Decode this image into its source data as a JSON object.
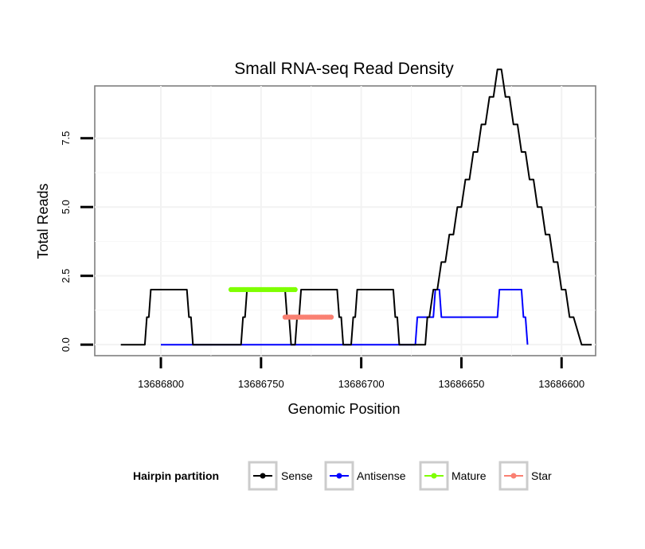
{
  "chart_data": {
    "type": "line",
    "title": "Small RNA-seq Read Density",
    "xlabel": "Genomic Position",
    "ylabel": "Total Reads",
    "x_reversed": true,
    "xlim": [
      13686833,
      13686583
    ],
    "ylim": [
      -0.4,
      9.4
    ],
    "x_ticks": [
      13686800,
      13686750,
      13686700,
      13686650,
      13686600
    ],
    "x_tick_labels": [
      "13686800",
      "13686750",
      "13686700",
      "13686650",
      "13686600"
    ],
    "y_ticks": [
      0,
      2.5,
      5,
      7.5
    ],
    "y_tick_labels": [
      "0.0",
      "2.5",
      "5.0",
      "7.5"
    ],
    "grid": true,
    "legend": {
      "title": "Hairpin partition",
      "position": "bottom",
      "entries": [
        "Sense",
        "Antisense",
        "Mature",
        "Star"
      ]
    },
    "series": [
      {
        "name": "Sense",
        "color": "#000000",
        "marker": "line",
        "x": [
          13686820,
          13686808,
          13686807,
          13686806,
          13686805,
          13686787,
          13686786,
          13686785,
          13686784,
          13686760,
          13686759,
          13686758,
          13686757,
          13686738,
          13686737,
          13686736,
          13686735,
          13686733,
          13686732,
          13686731,
          13686730,
          13686712,
          13686711,
          13686710,
          13686709,
          13686705,
          13686704,
          13686703,
          13686702,
          13686684,
          13686683,
          13686682,
          13686681,
          13686668,
          13686667,
          13686666,
          13686664,
          13686662,
          13686660,
          13686658,
          13686656,
          13686654,
          13686652,
          13686650,
          13686648,
          13686646,
          13686644,
          13686642,
          13686640,
          13686638,
          13686636,
          13686634,
          13686632,
          13686630,
          13686628,
          13686626,
          13686624,
          13686622,
          13686620,
          13686618,
          13686616,
          13686614,
          13686612,
          13686610,
          13686608,
          13686606,
          13686604,
          13686602,
          13686600,
          13686598,
          13686596,
          13686594,
          13686590,
          13686585
        ],
        "y": [
          0,
          0,
          1,
          1,
          2,
          2,
          1,
          1,
          0,
          0,
          1,
          1,
          2,
          2,
          1,
          1,
          0,
          0,
          1,
          1,
          2,
          2,
          1,
          1,
          0,
          0,
          1,
          1,
          2,
          2,
          1,
          1,
          0,
          0,
          1,
          1,
          2,
          2,
          3,
          3,
          4,
          4,
          5,
          5,
          6,
          6,
          7,
          7,
          8,
          8,
          9,
          9,
          10,
          10,
          9,
          9,
          8,
          8,
          7,
          7,
          6,
          6,
          5,
          5,
          4,
          4,
          3,
          3,
          2,
          2,
          1,
          1,
          0,
          0
        ]
      },
      {
        "name": "Antisense",
        "color": "#0000ff",
        "marker": "line",
        "x": [
          13686800,
          13686700,
          13686674,
          13686673,
          13686672,
          13686664,
          13686663,
          13686662,
          13686661,
          13686660,
          13686632,
          13686631,
          13686630,
          13686620,
          13686619,
          13686618,
          13686617
        ],
        "y": [
          0,
          0,
          0,
          0,
          1,
          1,
          2,
          2,
          2,
          1,
          1,
          2,
          2,
          2,
          1,
          1,
          0
        ]
      },
      {
        "name": "Mature",
        "color": "#7fff00",
        "marker": "points",
        "x": [
          13686765,
          13686764,
          13686763,
          13686762,
          13686761,
          13686760,
          13686759,
          13686758,
          13686757,
          13686756,
          13686755,
          13686754,
          13686753,
          13686752,
          13686751,
          13686750,
          13686749,
          13686748,
          13686747,
          13686746,
          13686745,
          13686744,
          13686743,
          13686742,
          13686741,
          13686740,
          13686739,
          13686738,
          13686737,
          13686736,
          13686735,
          13686734,
          13686733,
          13686732
        ],
        "y": [
          2,
          2,
          2,
          2,
          2,
          2,
          2,
          2,
          2,
          2,
          2,
          2,
          2,
          2,
          2,
          2,
          2,
          2,
          2,
          2,
          2,
          2,
          2,
          2,
          2,
          2,
          2,
          2,
          2,
          2,
          2,
          2,
          2,
          1
        ]
      },
      {
        "name": "Star",
        "color": "#fa8072",
        "marker": "points",
        "x": [
          13686738,
          13686737,
          13686736,
          13686735,
          13686734,
          13686733,
          13686732,
          13686731,
          13686730,
          13686729,
          13686728,
          13686727,
          13686726,
          13686725,
          13686724,
          13686723,
          13686722,
          13686721,
          13686720,
          13686719,
          13686718,
          13686717,
          13686716,
          13686715
        ],
        "y": [
          1,
          1,
          1,
          1,
          1,
          1,
          1,
          1,
          1,
          1,
          1,
          1,
          1,
          1,
          1,
          1,
          1,
          1,
          1,
          1,
          1,
          1,
          1,
          1
        ]
      }
    ]
  }
}
